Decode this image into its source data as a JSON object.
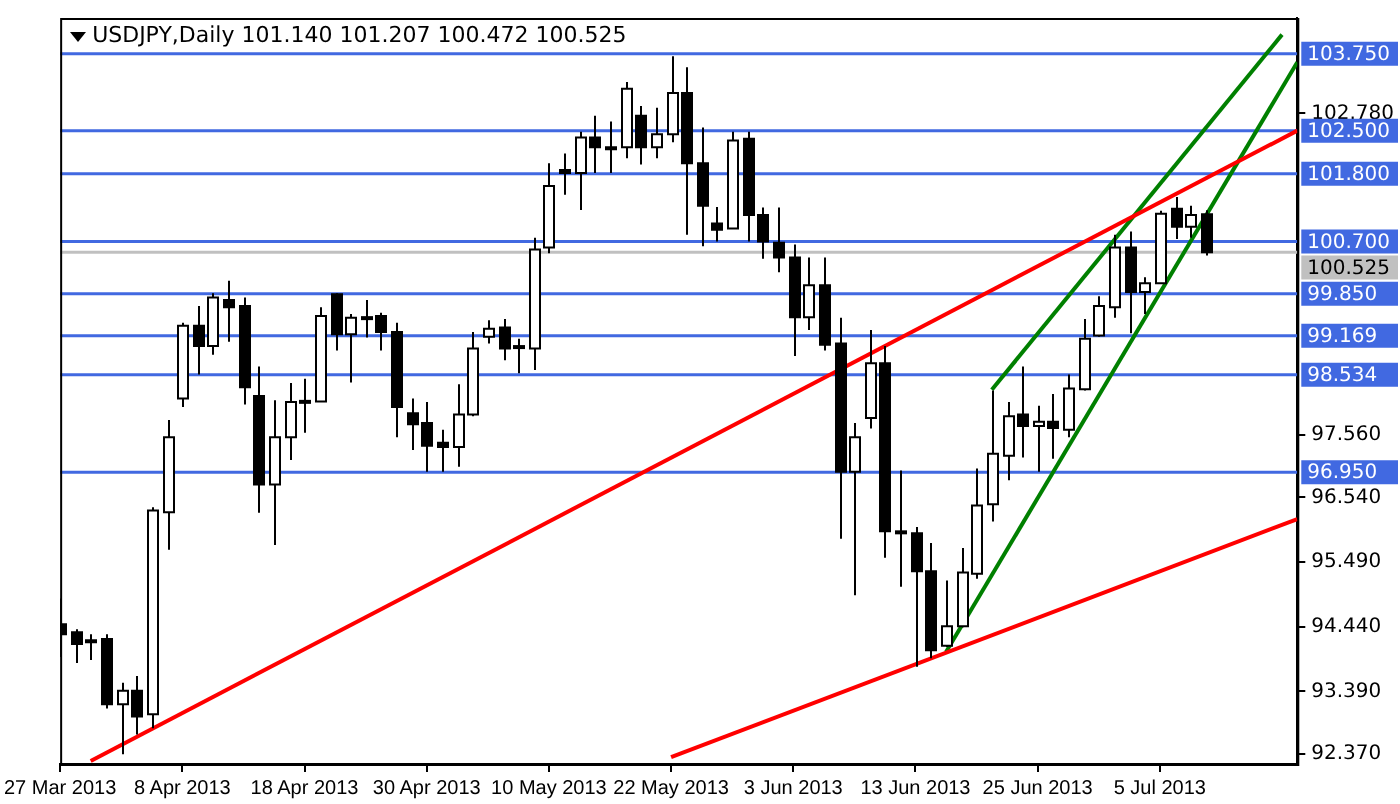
{
  "chart_data": {
    "type": "candlestick",
    "title": "USDJPY,Daily 101.140 101.207 100.472 100.525",
    "categories": [
      "27 Mar 2013",
      null,
      null,
      null,
      null,
      null,
      null,
      null,
      "8 Apr 2013",
      null,
      null,
      null,
      null,
      null,
      null,
      null,
      "18 Apr 2013",
      null,
      null,
      null,
      null,
      null,
      null,
      null,
      "30 Apr 2013",
      null,
      null,
      null,
      null,
      null,
      null,
      null,
      "10 May 2013",
      null,
      null,
      null,
      null,
      null,
      null,
      null,
      "22 May 2013",
      null,
      null,
      null,
      null,
      null,
      null,
      null,
      "3 Jun 2013",
      null,
      null,
      null,
      null,
      null,
      null,
      null,
      "13 Jun 2013",
      null,
      null,
      null,
      null,
      null,
      null,
      null,
      "25 Jun 2013",
      null,
      null,
      null,
      null,
      null,
      null,
      null,
      "5 Jul 2013",
      null,
      null,
      null,
      null,
      null,
      null,
      null,
      null,
      null
    ],
    "ohlc": [
      [
        94.48,
        94.9,
        93.95,
        94.32
      ],
      [
        94.35,
        94.4,
        93.85,
        94.16
      ],
      [
        94.22,
        94.32,
        93.9,
        94.21
      ],
      [
        94.24,
        94.32,
        93.11,
        93.18
      ],
      [
        93.18,
        93.53,
        92.37,
        93.4
      ],
      [
        93.4,
        93.64,
        92.69,
        92.98
      ],
      [
        93.02,
        96.38,
        92.79,
        96.33
      ],
      [
        96.3,
        97.8,
        95.69,
        97.52
      ],
      [
        98.15,
        99.38,
        98.01,
        99.33
      ],
      [
        99.33,
        99.65,
        98.54,
        99.0
      ],
      [
        99.0,
        99.86,
        98.86,
        99.79
      ],
      [
        99.75,
        100.06,
        99.07,
        99.63
      ],
      [
        99.65,
        99.79,
        98.05,
        98.33
      ],
      [
        98.19,
        98.67,
        96.29,
        96.75
      ],
      [
        96.75,
        98.12,
        95.77,
        97.52
      ],
      [
        97.52,
        98.4,
        97.15,
        98.09
      ],
      [
        98.11,
        98.47,
        97.59,
        98.1
      ],
      [
        98.1,
        99.63,
        98.09,
        99.49
      ],
      [
        99.84,
        99.86,
        98.93,
        99.19
      ],
      [
        99.19,
        99.52,
        98.41,
        99.46
      ],
      [
        99.47,
        99.75,
        99.14,
        99.46
      ],
      [
        99.49,
        99.54,
        98.93,
        99.23
      ],
      [
        99.23,
        99.38,
        97.52,
        98.01
      ],
      [
        97.91,
        98.15,
        97.31,
        97.73
      ],
      [
        97.75,
        98.09,
        96.96,
        97.38
      ],
      [
        97.43,
        97.64,
        96.96,
        97.36
      ],
      [
        97.36,
        98.38,
        97.04,
        97.89
      ],
      [
        97.89,
        99.23,
        97.86,
        98.96
      ],
      [
        99.15,
        99.42,
        99.04,
        99.28
      ],
      [
        99.3,
        99.44,
        98.77,
        98.96
      ],
      [
        99.0,
        99.12,
        98.56,
        98.97
      ],
      [
        98.96,
        100.76,
        98.61,
        100.57
      ],
      [
        100.6,
        101.97,
        100.51,
        101.6
      ],
      [
        101.86,
        102.13,
        101.46,
        101.81
      ],
      [
        101.81,
        102.48,
        101.21,
        102.39
      ],
      [
        102.39,
        102.74,
        101.81,
        102.23
      ],
      [
        102.23,
        102.65,
        101.81,
        102.22
      ],
      [
        102.23,
        103.29,
        102.05,
        103.18
      ],
      [
        102.74,
        102.9,
        101.95,
        102.23
      ],
      [
        102.23,
        102.87,
        102.05,
        102.44
      ],
      [
        102.44,
        103.71,
        102.31,
        103.11
      ],
      [
        103.11,
        103.53,
        100.81,
        101.97
      ],
      [
        101.97,
        102.55,
        100.62,
        101.28
      ],
      [
        100.99,
        101.26,
        100.7,
        100.89
      ],
      [
        100.91,
        102.48,
        100.9,
        102.34
      ],
      [
        102.37,
        102.48,
        100.7,
        101.13
      ],
      [
        101.13,
        101.25,
        100.42,
        100.7
      ],
      [
        100.68,
        101.25,
        100.2,
        100.44
      ],
      [
        100.44,
        100.65,
        98.84,
        99.47
      ],
      [
        99.47,
        100.44,
        99.26,
        99.99
      ],
      [
        99.99,
        100.44,
        98.93,
        99.02
      ],
      [
        99.04,
        99.46,
        95.87,
        96.96
      ],
      [
        96.96,
        97.75,
        94.95,
        97.52
      ],
      [
        97.83,
        99.26,
        97.66,
        98.72
      ],
      [
        98.72,
        99.0,
        95.56,
        95.99
      ],
      [
        95.99,
        96.98,
        95.09,
        95.98
      ],
      [
        95.96,
        96.06,
        93.79,
        95.34
      ],
      [
        95.34,
        95.8,
        93.93,
        94.06
      ],
      [
        94.13,
        95.19,
        94.11,
        94.45
      ],
      [
        94.45,
        95.72,
        94.43,
        95.32
      ],
      [
        95.3,
        97.01,
        95.22,
        96.41
      ],
      [
        96.43,
        98.28,
        96.15,
        97.25
      ],
      [
        97.22,
        98.09,
        96.82,
        97.86
      ],
      [
        97.89,
        98.67,
        97.19,
        97.7
      ],
      [
        97.7,
        98.03,
        96.96,
        97.77
      ],
      [
        97.77,
        98.22,
        97.17,
        97.67
      ],
      [
        97.64,
        98.54,
        97.52,
        98.31
      ],
      [
        98.3,
        99.44,
        98.28,
        99.12
      ],
      [
        99.17,
        99.81,
        99.15,
        99.65
      ],
      [
        99.63,
        100.81,
        99.46,
        100.6
      ],
      [
        100.6,
        100.86,
        99.21,
        99.88
      ],
      [
        99.88,
        100.12,
        99.52,
        100.02
      ],
      [
        100.02,
        101.2,
        100.01,
        101.15
      ],
      [
        101.23,
        101.42,
        100.74,
        100.94
      ],
      [
        100.94,
        101.28,
        100.76,
        101.13
      ],
      [
        101.14,
        101.207,
        100.472,
        100.525
      ],
      null,
      null,
      null,
      null,
      null,
      null
    ],
    "series": [
      {
        "type": "line",
        "color": "#ff0000",
        "values": [
          null,
          null,
          92.26,
          null,
          null,
          null,
          null,
          null,
          null,
          null,
          null,
          null,
          null,
          null,
          null,
          null,
          null,
          null,
          null,
          null,
          null,
          null,
          null,
          null,
          null,
          null,
          null,
          null,
          null,
          null,
          null,
          null,
          null,
          null,
          null,
          null,
          null,
          null,
          null,
          null,
          null,
          null,
          null,
          null,
          null,
          null,
          null,
          null,
          null,
          null,
          null,
          null,
          null,
          null,
          null,
          null,
          null,
          null,
          null,
          null,
          null,
          null,
          null,
          null,
          null,
          null,
          null,
          null,
          null,
          null,
          null,
          null,
          null,
          null,
          null,
          null,
          null,
          null,
          null,
          null,
          null,
          102.5
        ]
      },
      {
        "type": "line",
        "color": "#ff0000",
        "values": [
          null,
          null,
          null,
          null,
          null,
          null,
          null,
          null,
          null,
          null,
          null,
          null,
          null,
          null,
          null,
          null,
          null,
          null,
          null,
          null,
          null,
          null,
          null,
          null,
          null,
          null,
          null,
          null,
          null,
          null,
          null,
          null,
          null,
          null,
          null,
          null,
          null,
          null,
          null,
          null,
          92.32,
          null,
          null,
          null,
          null,
          null,
          null,
          null,
          null,
          null,
          null,
          null,
          null,
          null,
          null,
          null,
          null,
          null,
          null,
          null,
          null,
          null,
          null,
          null,
          null,
          null,
          null,
          null,
          null,
          null,
          null,
          null,
          null,
          null,
          null,
          null,
          null,
          null,
          null,
          null,
          null,
          96.19
        ]
      },
      {
        "type": "line",
        "color": "#008000",
        "values": [
          null,
          null,
          null,
          null,
          null,
          null,
          null,
          null,
          null,
          null,
          null,
          null,
          null,
          null,
          null,
          null,
          null,
          null,
          null,
          null,
          null,
          null,
          null,
          null,
          null,
          null,
          null,
          null,
          null,
          null,
          null,
          null,
          null,
          null,
          null,
          null,
          null,
          null,
          null,
          null,
          null,
          null,
          null,
          null,
          null,
          null,
          null,
          null,
          null,
          null,
          null,
          null,
          null,
          null,
          null,
          null,
          null,
          null,
          null,
          null,
          null,
          98.29,
          null,
          null,
          null,
          null,
          null,
          null,
          null,
          null,
          null,
          null,
          null,
          null,
          null,
          null,
          null,
          null,
          null,
          null,
          104.06,
          null
        ]
      },
      {
        "type": "line",
        "color": "#008000",
        "values": [
          null,
          null,
          null,
          null,
          null,
          null,
          null,
          null,
          null,
          null,
          null,
          null,
          null,
          null,
          null,
          null,
          null,
          null,
          null,
          null,
          null,
          null,
          null,
          null,
          null,
          null,
          null,
          null,
          null,
          null,
          null,
          null,
          null,
          null,
          null,
          null,
          null,
          null,
          null,
          null,
          null,
          null,
          null,
          null,
          null,
          null,
          null,
          null,
          null,
          null,
          null,
          null,
          null,
          null,
          null,
          null,
          null,
          null,
          94.03,
          null,
          null,
          null,
          null,
          null,
          null,
          null,
          null,
          null,
          null,
          null,
          null,
          null,
          null,
          null,
          null,
          null,
          null,
          null,
          null,
          null,
          null,
          103.61
        ]
      }
    ],
    "ylim": [
      92.21,
      104.33
    ],
    "yticks": [
      {
        "value": 102.78,
        "label": "102.780"
      },
      {
        "value": 97.56,
        "label": "97.560"
      },
      {
        "value": 96.54,
        "label": "96.540"
      },
      {
        "value": 95.49,
        "label": "95.490"
      },
      {
        "value": 94.44,
        "label": "94.440"
      },
      {
        "value": 93.39,
        "label": "93.390"
      },
      {
        "value": 92.37,
        "label": "92.370"
      }
    ],
    "ref_lines": [
      {
        "axis": "y",
        "value": 103.75,
        "label": "103.750",
        "color": "#4169e1"
      },
      {
        "axis": "y",
        "value": 102.5,
        "label": "102.500",
        "color": "#4169e1"
      },
      {
        "axis": "y",
        "value": 101.8,
        "label": "101.800",
        "color": "#4169e1"
      },
      {
        "axis": "y",
        "value": 100.7,
        "label": "100.700",
        "color": "#4169e1"
      },
      {
        "axis": "y",
        "value": 100.525,
        "label": "100.525",
        "color": "#c0c0c0"
      },
      {
        "axis": "y",
        "value": 99.85,
        "label": "99.850",
        "color": "#4169e1"
      },
      {
        "axis": "y",
        "value": 99.169,
        "label": "99.169",
        "color": "#4169e1"
      },
      {
        "axis": "y",
        "value": 98.534,
        "label": "98.534",
        "color": "#4169e1"
      },
      {
        "axis": "y",
        "value": 96.95,
        "label": "96.950",
        "color": "#4169e1"
      }
    ],
    "grid": false,
    "legend": false
  }
}
